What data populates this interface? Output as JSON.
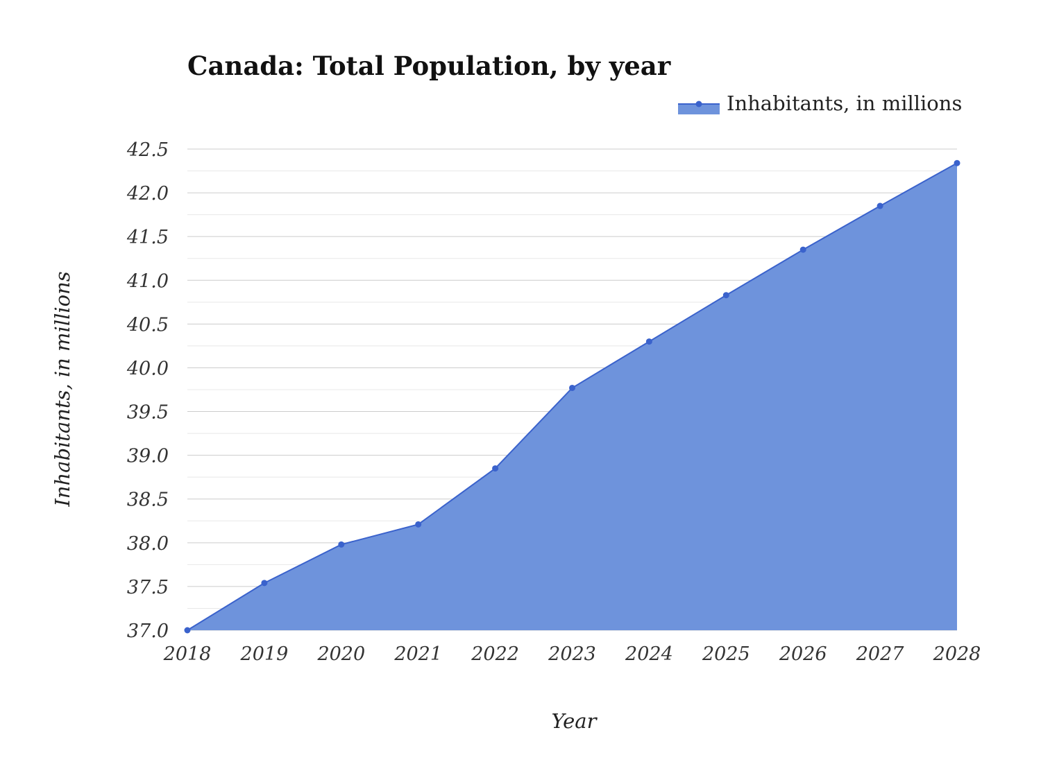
{
  "colors": {
    "series_line": "#3a62cc",
    "series_fill": "#6e93dc",
    "grid_major": "#cccccc",
    "grid_minor": "#e8e8e8",
    "background": "#ffffff"
  },
  "chart_data": {
    "type": "area",
    "title": "Canada: Total Population, by year",
    "xlabel": "Year",
    "ylabel": "Inhabitants, in millions",
    "legend_position": "top-right",
    "grid": true,
    "ylim": [
      37.0,
      42.5
    ],
    "yticks": [
      "37.0",
      "37.5",
      "38.0",
      "38.5",
      "39.0",
      "39.5",
      "40.0",
      "40.5",
      "41.0",
      "41.5",
      "42.0",
      "42.5"
    ],
    "x": [
      "2018",
      "2019",
      "2020",
      "2021",
      "2022",
      "2023",
      "2024",
      "2025",
      "2026",
      "2027",
      "2028"
    ],
    "series": [
      {
        "name": "Inhabitants, in millions",
        "values": [
          37.0,
          37.54,
          37.98,
          38.21,
          38.85,
          39.77,
          40.3,
          40.83,
          41.35,
          41.85,
          42.34
        ]
      }
    ]
  }
}
